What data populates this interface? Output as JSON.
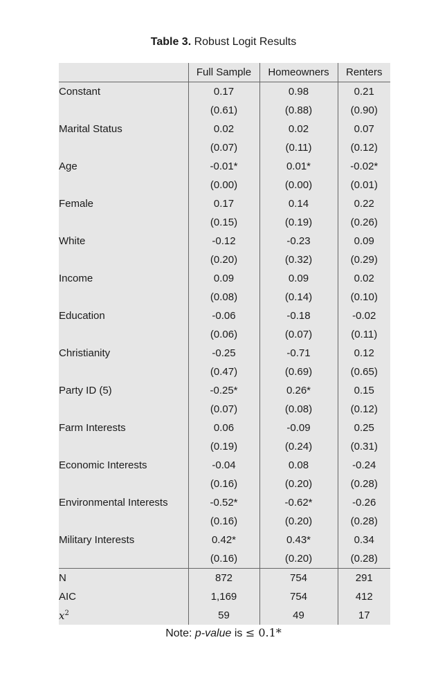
{
  "caption": {
    "label": "Table 3.",
    "title": "Robust Logit Results"
  },
  "columns": [
    "",
    "Full Sample",
    "Homeowners",
    "Renters"
  ],
  "variables": [
    {
      "name": "Constant",
      "coef": [
        "0.17",
        "0.98",
        "0.21"
      ],
      "se": [
        "(0.61)",
        "(0.88)",
        "(0.90)"
      ]
    },
    {
      "name": "Marital Status",
      "coef": [
        "0.02",
        "0.02",
        "0.07"
      ],
      "se": [
        "(0.07)",
        "(0.11)",
        "(0.12)"
      ]
    },
    {
      "name": "Age",
      "coef": [
        "-0.01*",
        "0.01*",
        "-0.02*"
      ],
      "se": [
        "(0.00)",
        "(0.00)",
        "(0.01)"
      ]
    },
    {
      "name": "Female",
      "coef": [
        "0.17",
        "0.14",
        "0.22"
      ],
      "se": [
        "(0.15)",
        "(0.19)",
        "(0.26)"
      ]
    },
    {
      "name": "White",
      "coef": [
        "-0.12",
        "-0.23",
        "0.09"
      ],
      "se": [
        "(0.20)",
        "(0.32)",
        "(0.29)"
      ]
    },
    {
      "name": "Income",
      "coef": [
        "0.09",
        "0.09",
        "0.02"
      ],
      "se": [
        "(0.08)",
        "(0.14)",
        "(0.10)"
      ]
    },
    {
      "name": "Education",
      "coef": [
        "-0.06",
        "-0.18",
        "-0.02"
      ],
      "se": [
        "(0.06)",
        "(0.07)",
        "(0.11)"
      ]
    },
    {
      "name": "Christianity",
      "coef": [
        "-0.25",
        "-0.71",
        "0.12"
      ],
      "se": [
        "(0.47)",
        "(0.69)",
        "(0.65)"
      ]
    },
    {
      "name": "Party ID (5)",
      "coef": [
        "-0.25*",
        "0.26*",
        "0.15"
      ],
      "se": [
        "(0.07)",
        "(0.08)",
        "(0.12)"
      ]
    },
    {
      "name": "Farm Interests",
      "coef": [
        "0.06",
        "-0.09",
        "0.25"
      ],
      "se": [
        "(0.19)",
        "(0.24)",
        "(0.31)"
      ]
    },
    {
      "name": "Economic Interests",
      "coef": [
        "-0.04",
        "0.08",
        "-0.24"
      ],
      "se": [
        "(0.16)",
        "(0.20)",
        "(0.28)"
      ]
    },
    {
      "name": "Environmental Interests",
      "coef": [
        "-0.52*",
        "-0.62*",
        "-0.26"
      ],
      "se": [
        "(0.16)",
        "(0.20)",
        "(0.28)"
      ]
    },
    {
      "name": "Military Interests",
      "coef": [
        "0.42*",
        "0.43*",
        "0.34"
      ],
      "se": [
        "(0.16)",
        "(0.20)",
        "(0.28)"
      ]
    }
  ],
  "stats": [
    {
      "name": "N",
      "values": [
        "872",
        "754",
        "291"
      ]
    },
    {
      "name": "AIC",
      "values": [
        "1,169",
        "754",
        "412"
      ]
    },
    {
      "name_base": "x",
      "name_sup": "2",
      "values": [
        "59",
        "49",
        "17"
      ]
    }
  ],
  "note": {
    "prefix": "Note: ",
    "italic": "p-value",
    "middle": " is ",
    "math": "≤ 0.1*"
  }
}
